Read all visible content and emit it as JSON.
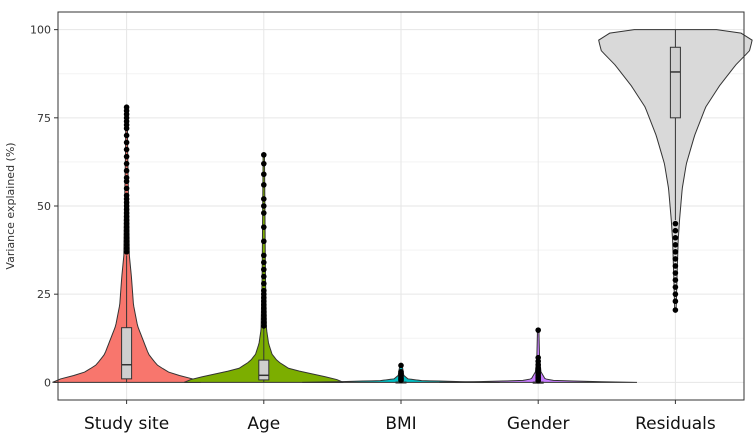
{
  "chart_data": {
    "type": "violin",
    "title": "",
    "xlabel": "",
    "ylabel": "Variance explained (%)",
    "ylim": [
      -5,
      105
    ],
    "yticks": [
      0,
      25,
      50,
      75,
      100
    ],
    "grid": true,
    "legend": "none",
    "categories": [
      "Study site",
      "Age",
      "BMI",
      "Gender",
      "Residuals"
    ],
    "series": [
      {
        "category": "Study site",
        "color": "#f8766d",
        "box": {
          "min": 0,
          "q1": 1,
          "median": 5,
          "q3": 15.5,
          "whisker_high": 36
        },
        "violin_profile": [
          [
            0,
            0.54
          ],
          [
            1,
            0.48
          ],
          [
            2,
            0.38
          ],
          [
            3,
            0.3
          ],
          [
            5,
            0.22
          ],
          [
            8,
            0.16
          ],
          [
            12,
            0.12
          ],
          [
            16,
            0.08
          ],
          [
            22,
            0.05
          ],
          [
            30,
            0.035
          ],
          [
            36,
            0.02
          ],
          [
            50,
            0.015
          ],
          [
            65,
            0.008
          ],
          [
            78,
            0.005
          ]
        ],
        "outliers": [
          37,
          38,
          39,
          40,
          41,
          42,
          43,
          44,
          45,
          46,
          47,
          48,
          49,
          50,
          51,
          52,
          53,
          55,
          57,
          58,
          60,
          62,
          64,
          66,
          68,
          70,
          72,
          73,
          74,
          75,
          76,
          77,
          78
        ]
      },
      {
        "category": "Age",
        "color": "#7cae00",
        "box": {
          "min": 0,
          "q1": 0.7,
          "median": 2,
          "q3": 6.3,
          "whisker_high": 15.5
        },
        "violin_profile": [
          [
            0,
            0.58
          ],
          [
            1,
            0.52
          ],
          [
            2,
            0.4
          ],
          [
            3,
            0.28
          ],
          [
            4,
            0.18
          ],
          [
            6,
            0.1
          ],
          [
            8,
            0.06
          ],
          [
            11,
            0.035
          ],
          [
            15,
            0.02
          ],
          [
            30,
            0.012
          ],
          [
            50,
            0.008
          ],
          [
            64,
            0.005
          ]
        ],
        "outliers": [
          16,
          17,
          18,
          19,
          20,
          21,
          22,
          23,
          24,
          25,
          26,
          28,
          30,
          32,
          34,
          36,
          40,
          44,
          48,
          50,
          52,
          56,
          59,
          62,
          64.5
        ]
      },
      {
        "category": "BMI",
        "color": "#00bfc4",
        "box": {
          "min": 0,
          "q1": 0,
          "median": 0,
          "q3": 0.1,
          "whisker_high": 0.3
        },
        "violin_profile": [
          [
            0,
            0.72
          ],
          [
            0.2,
            0.45
          ],
          [
            0.5,
            0.15
          ],
          [
            1,
            0.05
          ],
          [
            2,
            0.02
          ],
          [
            5,
            0.008
          ]
        ],
        "outliers": [
          0.6,
          0.9,
          1.2,
          1.6,
          2.0,
          2.5,
          3.0,
          4.8
        ]
      },
      {
        "category": "Gender",
        "color": "#c77cff",
        "box": {
          "min": 0,
          "q1": 0,
          "median": 0,
          "q3": 0.05,
          "whisker_high": 0.2
        },
        "violin_profile": [
          [
            0,
            0.72
          ],
          [
            0.2,
            0.45
          ],
          [
            0.5,
            0.12
          ],
          [
            1,
            0.05
          ],
          [
            3,
            0.02
          ],
          [
            7,
            0.01
          ],
          [
            15,
            0.005
          ]
        ],
        "outliers": [
          0.5,
          1,
          1.5,
          2,
          2.5,
          3,
          3.5,
          4,
          5,
          6,
          7,
          14.8
        ]
      },
      {
        "category": "Residuals",
        "color": "#d9d9d9",
        "box": {
          "min": 46,
          "q1": 75,
          "median": 88,
          "q3": 95,
          "whisker_high": 100
        },
        "violin_profile": [
          [
            20.5,
            0.005
          ],
          [
            30,
            0.012
          ],
          [
            40,
            0.02
          ],
          [
            46,
            0.03
          ],
          [
            55,
            0.05
          ],
          [
            62,
            0.08
          ],
          [
            70,
            0.14
          ],
          [
            78,
            0.22
          ],
          [
            84,
            0.32
          ],
          [
            90,
            0.44
          ],
          [
            94,
            0.54
          ],
          [
            97,
            0.56
          ],
          [
            99,
            0.48
          ],
          [
            100,
            0.3
          ]
        ],
        "outliers": [
          20.5,
          23,
          25,
          27,
          29,
          31,
          33,
          35,
          37,
          39,
          41,
          43,
          45
        ]
      }
    ]
  }
}
